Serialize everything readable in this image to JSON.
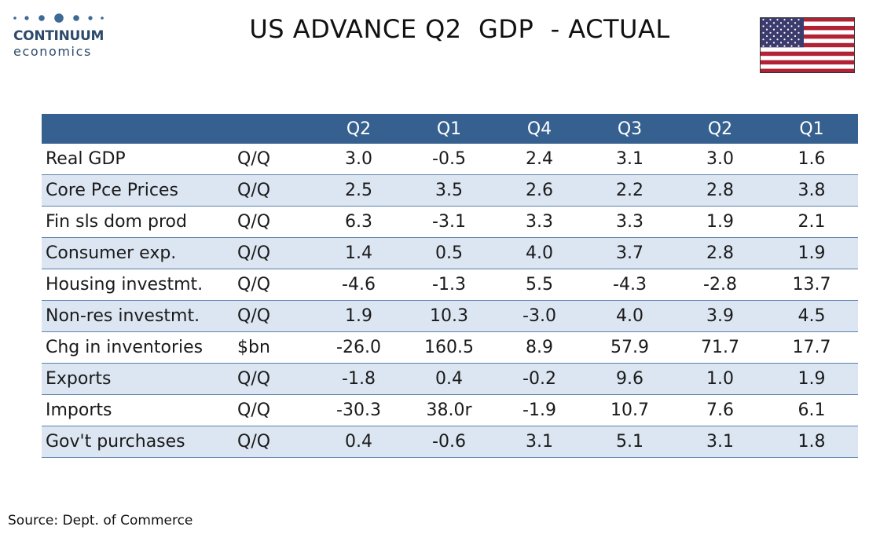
{
  "logo": {
    "brand": "CONTINUUM",
    "sub": "economics"
  },
  "title": "US ADVANCE Q2  GDP  - ACTUAL",
  "flag_icon": "us-flag-icon",
  "colors": {
    "header_bg": "#36608f",
    "row_alt_bg": "#dce6f2",
    "brand": "#2d4a6a",
    "flag_red": "#b22234",
    "flag_blue": "#3c3b6e"
  },
  "chart_data": {
    "type": "table",
    "title": "US ADVANCE Q2  GDP  - ACTUAL",
    "columns": [
      "Q2",
      "Q1",
      "Q4",
      "Q3",
      "Q2",
      "Q1"
    ],
    "rows": [
      {
        "label": "Real GDP",
        "unit": "Q/Q",
        "values": [
          "3.0",
          "-0.5",
          "2.4",
          "3.1",
          "3.0",
          "1.6"
        ]
      },
      {
        "label": "Core Pce  Prices",
        "unit": "Q/Q",
        "values": [
          "2.5",
          "3.5",
          "2.6",
          "2.2",
          "2.8",
          "3.8"
        ]
      },
      {
        "label": "Fin sls dom prod",
        "unit": "Q/Q",
        "values": [
          "6.3",
          "-3.1",
          "3.3",
          "3.3",
          "1.9",
          "2.1"
        ]
      },
      {
        "label": "Consumer exp.",
        "unit": "Q/Q",
        "values": [
          "1.4",
          "0.5",
          "4.0",
          "3.7",
          "2.8",
          "1.9"
        ]
      },
      {
        "label": "Housing investmt.",
        "unit": "Q/Q",
        "values": [
          "-4.6",
          "-1.3",
          "5.5",
          "-4.3",
          "-2.8",
          "13.7"
        ]
      },
      {
        "label": "Non-res investmt.",
        "unit": "Q/Q",
        "values": [
          "1.9",
          "10.3",
          "-3.0",
          "4.0",
          "3.9",
          "4.5"
        ]
      },
      {
        "label": "Chg in inventories",
        "unit": "$bn",
        "values": [
          "-26.0",
          "160.5",
          "8.9",
          "57.9",
          "71.7",
          "17.7"
        ]
      },
      {
        "label": "Exports",
        "unit": "Q/Q",
        "values": [
          "-1.8",
          "0.4",
          "-0.2",
          "9.6",
          "1.0",
          "1.9"
        ]
      },
      {
        "label": "Imports",
        "unit": "Q/Q",
        "values": [
          "-30.3",
          "38.0r",
          "-1.9",
          "10.7",
          "7.6",
          "6.1"
        ]
      },
      {
        "label": "Gov't purchases",
        "unit": "Q/Q",
        "values": [
          "0.4",
          "-0.6",
          "3.1",
          "5.1",
          "3.1",
          "1.8"
        ]
      }
    ]
  },
  "source": "Source: Dept. of Commerce"
}
